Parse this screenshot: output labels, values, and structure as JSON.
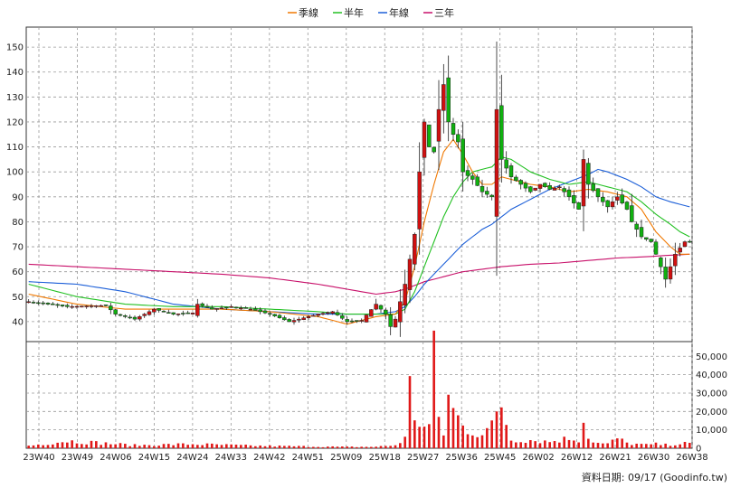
{
  "chart_data": {
    "type": "candlestick",
    "legend": [
      {
        "name": "季線",
        "color": "#f07800"
      },
      {
        "name": "半年",
        "color": "#22c022"
      },
      {
        "name": "年線",
        "color": "#1c5fd8"
      },
      {
        "name": "三年",
        "color": "#c8106a"
      }
    ],
    "legend_position": "top-center",
    "grid": true,
    "x_labels": [
      "23W40",
      "23W49",
      "24W06",
      "24W15",
      "24W24",
      "24W33",
      "24W42",
      "24W51",
      "25W09",
      "25W18",
      "25W27",
      "25W36",
      "25W45",
      "26W02",
      "26W12",
      "26W21",
      "26W30",
      "26W38"
    ],
    "price_axis": {
      "ylim": [
        32,
        158
      ],
      "ticks": [
        40,
        50,
        60,
        70,
        80,
        90,
        100,
        110,
        120,
        130,
        140,
        150
      ]
    },
    "volume_axis": {
      "ylim": [
        0,
        58000
      ],
      "ticks": [
        0,
        10000,
        20000,
        30000,
        40000,
        50000
      ],
      "tick_labels": [
        "0",
        "10,000",
        "20,000",
        "30,000",
        "40,000",
        "50,000"
      ]
    },
    "price_points": [
      [
        0,
        48
      ],
      [
        8,
        46
      ],
      [
        16,
        46.5
      ],
      [
        18,
        43
      ],
      [
        22,
        41
      ],
      [
        26,
        45
      ],
      [
        30,
        43
      ],
      [
        34,
        43.5
      ],
      [
        35,
        47
      ],
      [
        38,
        45
      ],
      [
        42,
        46
      ],
      [
        46,
        45
      ],
      [
        50,
        43
      ],
      [
        54,
        40
      ],
      [
        56,
        41
      ],
      [
        60,
        43
      ],
      [
        63,
        44
      ],
      [
        66,
        40
      ],
      [
        69,
        40.5
      ],
      [
        72,
        47
      ],
      [
        74,
        43
      ],
      [
        75,
        38
      ],
      [
        76,
        41
      ],
      [
        78,
        55
      ],
      [
        80,
        75
      ],
      [
        81,
        100
      ],
      [
        82,
        120
      ],
      [
        83,
        110
      ],
      [
        84,
        108
      ],
      [
        85,
        125
      ],
      [
        86,
        135
      ],
      [
        87,
        120
      ],
      [
        88,
        115
      ],
      [
        89,
        112
      ],
      [
        90,
        100
      ],
      [
        92,
        97
      ],
      [
        94,
        92
      ],
      [
        96,
        90
      ],
      [
        97,
        125
      ],
      [
        98,
        105
      ],
      [
        100,
        98
      ],
      [
        102,
        95
      ],
      [
        104,
        92
      ],
      [
        106,
        95
      ],
      [
        108,
        93
      ],
      [
        110,
        94
      ],
      [
        112,
        90
      ],
      [
        114,
        85
      ],
      [
        115,
        105
      ],
      [
        116,
        95
      ],
      [
        118,
        90
      ],
      [
        120,
        86
      ],
      [
        122,
        90
      ],
      [
        124,
        85
      ],
      [
        125,
        80
      ],
      [
        127,
        74
      ],
      [
        129,
        72
      ],
      [
        131,
        62
      ],
      [
        132,
        57
      ],
      [
        134,
        67
      ],
      [
        136,
        72
      ],
      [
        137,
        72
      ]
    ],
    "ma_series": [
      {
        "name": "季線",
        "points": [
          [
            0,
            51
          ],
          [
            10,
            47
          ],
          [
            20,
            45
          ],
          [
            30,
            45
          ],
          [
            40,
            45
          ],
          [
            50,
            44
          ],
          [
            60,
            42
          ],
          [
            66,
            39
          ],
          [
            72,
            42
          ],
          [
            76,
            43
          ],
          [
            78,
            48
          ],
          [
            80,
            62
          ],
          [
            82,
            80
          ],
          [
            84,
            95
          ],
          [
            86,
            108
          ],
          [
            88,
            113
          ],
          [
            90,
            107
          ],
          [
            92,
            100
          ],
          [
            94,
            95
          ],
          [
            96,
            95
          ],
          [
            98,
            98
          ],
          [
            100,
            97
          ],
          [
            104,
            95
          ],
          [
            108,
            94
          ],
          [
            112,
            92
          ],
          [
            116,
            93
          ],
          [
            120,
            92
          ],
          [
            124,
            90
          ],
          [
            127,
            85
          ],
          [
            130,
            76
          ],
          [
            133,
            70
          ],
          [
            135,
            67
          ],
          [
            137,
            67
          ]
        ]
      },
      {
        "name": "半年",
        "points": [
          [
            0,
            55
          ],
          [
            10,
            50
          ],
          [
            20,
            47
          ],
          [
            30,
            46
          ],
          [
            40,
            46
          ],
          [
            50,
            45
          ],
          [
            60,
            44
          ],
          [
            66,
            43
          ],
          [
            72,
            43
          ],
          [
            76,
            43
          ],
          [
            78,
            45
          ],
          [
            80,
            52
          ],
          [
            82,
            62
          ],
          [
            84,
            72
          ],
          [
            86,
            82
          ],
          [
            88,
            90
          ],
          [
            90,
            96
          ],
          [
            92,
            100
          ],
          [
            94,
            101
          ],
          [
            96,
            102
          ],
          [
            98,
            106
          ],
          [
            100,
            105
          ],
          [
            104,
            100
          ],
          [
            108,
            97
          ],
          [
            112,
            95
          ],
          [
            116,
            96
          ],
          [
            120,
            94
          ],
          [
            124,
            92
          ],
          [
            127,
            88
          ],
          [
            130,
            83
          ],
          [
            133,
            79
          ],
          [
            135,
            76
          ],
          [
            137,
            74
          ]
        ]
      },
      {
        "name": "年線",
        "points": [
          [
            0,
            56
          ],
          [
            10,
            55
          ],
          [
            20,
            52
          ],
          [
            26,
            49
          ],
          [
            30,
            47
          ],
          [
            40,
            45
          ],
          [
            50,
            44
          ],
          [
            60,
            43
          ],
          [
            66,
            43
          ],
          [
            72,
            43
          ],
          [
            76,
            44
          ],
          [
            78,
            46
          ],
          [
            80,
            50
          ],
          [
            82,
            55
          ],
          [
            84,
            59
          ],
          [
            86,
            63
          ],
          [
            88,
            67
          ],
          [
            90,
            71
          ],
          [
            92,
            74
          ],
          [
            94,
            77
          ],
          [
            96,
            79
          ],
          [
            98,
            82
          ],
          [
            100,
            85
          ],
          [
            104,
            89
          ],
          [
            108,
            93
          ],
          [
            112,
            96
          ],
          [
            116,
            99
          ],
          [
            118,
            101
          ],
          [
            120,
            100
          ],
          [
            124,
            97
          ],
          [
            127,
            94
          ],
          [
            130,
            90
          ],
          [
            133,
            88
          ],
          [
            135,
            87
          ],
          [
            137,
            86
          ]
        ]
      },
      {
        "name": "三年",
        "points": [
          [
            0,
            63
          ],
          [
            10,
            62
          ],
          [
            20,
            61
          ],
          [
            30,
            60
          ],
          [
            40,
            59
          ],
          [
            50,
            57.5
          ],
          [
            60,
            55
          ],
          [
            66,
            53
          ],
          [
            72,
            51
          ],
          [
            76,
            52
          ],
          [
            78,
            53
          ],
          [
            82,
            56
          ],
          [
            86,
            58
          ],
          [
            90,
            60
          ],
          [
            94,
            61
          ],
          [
            98,
            62
          ],
          [
            104,
            63
          ],
          [
            110,
            63.5
          ],
          [
            116,
            64.5
          ],
          [
            122,
            65.5
          ],
          [
            128,
            66
          ],
          [
            132,
            66.5
          ],
          [
            137,
            67
          ]
        ]
      }
    ],
    "volume_points": [
      [
        0,
        1500
      ],
      [
        8,
        4500
      ],
      [
        22,
        1800
      ],
      [
        34,
        2500
      ],
      [
        46,
        1500
      ],
      [
        66,
        800
      ],
      [
        72,
        900
      ],
      [
        76,
        1800
      ],
      [
        78,
        6000
      ],
      [
        79,
        36000
      ],
      [
        80,
        20000
      ],
      [
        81,
        16000
      ],
      [
        82,
        12000
      ],
      [
        83,
        14000
      ],
      [
        84,
        53000
      ],
      [
        85,
        18000
      ],
      [
        86,
        9000
      ],
      [
        87,
        30000
      ],
      [
        88,
        23000
      ],
      [
        90,
        13000
      ],
      [
        92,
        10000
      ],
      [
        94,
        9000
      ],
      [
        96,
        13000
      ],
      [
        98,
        27000
      ],
      [
        100,
        5000
      ],
      [
        104,
        5000
      ],
      [
        108,
        4000
      ],
      [
        112,
        6000
      ],
      [
        114,
        5000
      ],
      [
        115,
        20000
      ],
      [
        116,
        6000
      ],
      [
        118,
        3000
      ],
      [
        120,
        2500
      ],
      [
        122,
        6000
      ],
      [
        124,
        3000
      ],
      [
        126,
        2500
      ],
      [
        128,
        2000
      ],
      [
        130,
        2500
      ],
      [
        132,
        2000
      ],
      [
        134,
        2500
      ],
      [
        136,
        3000
      ],
      [
        137,
        2500
      ]
    ],
    "footer": "資料日期: 09/17  (Goodinfo.tw)"
  }
}
